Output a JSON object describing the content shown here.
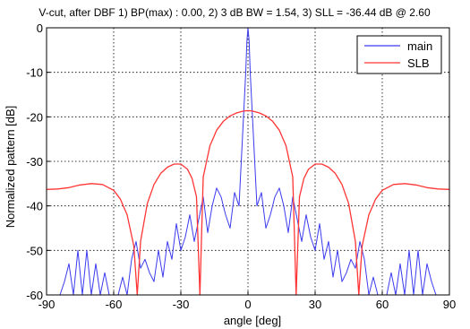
{
  "chart_data": {
    "type": "line",
    "title": "V-cut, after DBF 1) BP(max) : 0.00, 2) 3 dB BW = 1.54, 3) SLL = -36.44 dB @ 2.60",
    "xlabel": "angle [deg]",
    "ylabel": "Normalized pattern [dB]",
    "xlim": [
      -90,
      90
    ],
    "ylim": [
      -60,
      0
    ],
    "xticks": [
      -90,
      -60,
      -30,
      0,
      30,
      60,
      90
    ],
    "yticks": [
      0,
      -10,
      -20,
      -30,
      -40,
      -50,
      -60
    ],
    "grid": true,
    "legend_position": "top-right",
    "series": [
      {
        "name": "main",
        "color": "#3a3af0",
        "x": [
          -90,
          -86,
          -84,
          -82,
          -80,
          -78,
          -76,
          -74,
          -72,
          -70,
          -68,
          -66,
          -64,
          -62,
          -60,
          -58,
          -56,
          -54,
          -52,
          -50,
          -48,
          -46,
          -44,
          -42,
          -40,
          -38,
          -36,
          -34,
          -32,
          -30,
          -28,
          -26,
          -24,
          -22,
          -20,
          -18,
          -16,
          -14,
          -12,
          -10,
          -8,
          -6,
          -4,
          -2,
          -1,
          -0.5,
          0,
          0.5,
          1,
          2,
          4,
          6,
          8,
          10,
          12,
          14,
          16,
          18,
          20,
          22,
          24,
          26,
          28,
          30,
          32,
          34,
          36,
          38,
          40,
          42,
          44,
          46,
          48,
          50,
          52,
          54,
          56,
          58,
          60,
          62,
          64,
          66,
          68,
          70,
          72,
          74,
          76,
          78,
          80,
          82,
          84,
          86,
          90
        ],
        "values": [
          -60,
          -60,
          -60,
          -57,
          -53,
          -60,
          -50,
          -60,
          -50,
          -60,
          -53,
          -60,
          -55,
          -60,
          -60,
          -60,
          -56,
          -60,
          -52,
          -48,
          -54,
          -52,
          -55,
          -57,
          -50,
          -56,
          -48,
          -52,
          -44,
          -50,
          -47,
          -42,
          -48,
          -43,
          -38,
          -46,
          -40,
          -36,
          -38,
          -42,
          -45,
          -37,
          -40,
          -20,
          -10,
          -3,
          0,
          -3,
          -10,
          -20,
          -40,
          -37,
          -45,
          -42,
          -38,
          -36,
          -40,
          -46,
          -38,
          -43,
          -48,
          -42,
          -47,
          -50,
          -44,
          -52,
          -48,
          -56,
          -50,
          -57,
          -55,
          -52,
          -54,
          -48,
          -52,
          -60,
          -56,
          -60,
          -60,
          -60,
          -55,
          -60,
          -53,
          -60,
          -50,
          -60,
          -50,
          -60,
          -53,
          -57,
          -60,
          -60,
          -60
        ]
      },
      {
        "name": "SLB",
        "color": "#ff3535",
        "x": [
          -90,
          -85,
          -80,
          -75,
          -70,
          -65,
          -60,
          -57,
          -54,
          -51,
          -49.5,
          -48,
          -45,
          -42,
          -39,
          -36,
          -33,
          -30,
          -27,
          -25,
          -23,
          -21.5,
          -20,
          -17,
          -14,
          -11,
          -8,
          -5,
          -2,
          0,
          2,
          5,
          8,
          11,
          14,
          17,
          20,
          21.5,
          23,
          25,
          27,
          30,
          33,
          36,
          39,
          42,
          45,
          48,
          49.5,
          51,
          54,
          57,
          60,
          65,
          70,
          75,
          80,
          85,
          90
        ],
        "values": [
          -36.3,
          -36.2,
          -35.9,
          -35.3,
          -35.0,
          -35.2,
          -36.5,
          -38.5,
          -42.0,
          -49.0,
          -60,
          -48.0,
          -39.5,
          -35.2,
          -32.7,
          -31.3,
          -30.6,
          -30.6,
          -31.8,
          -33.8,
          -38.0,
          -60,
          -33.5,
          -26.5,
          -23.0,
          -21.0,
          -19.8,
          -19.1,
          -18.7,
          -18.6,
          -18.7,
          -19.1,
          -19.8,
          -21.0,
          -23.0,
          -26.5,
          -33.5,
          -60,
          -38.0,
          -33.8,
          -31.8,
          -30.6,
          -30.6,
          -31.3,
          -32.7,
          -35.2,
          -39.5,
          -48.0,
          -60,
          -49.0,
          -42.0,
          -38.5,
          -36.5,
          -35.2,
          -35.0,
          -35.3,
          -35.9,
          -36.2,
          -36.3
        ]
      }
    ]
  }
}
